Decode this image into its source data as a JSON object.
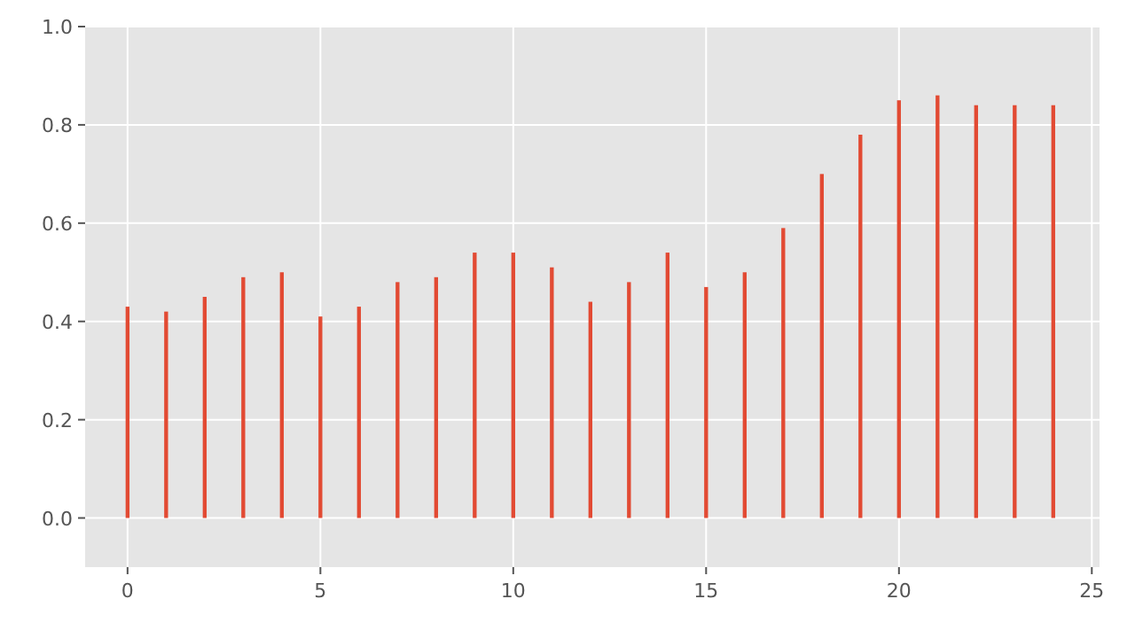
{
  "chart_data": {
    "type": "bar",
    "x": [
      0,
      1,
      2,
      3,
      4,
      5,
      6,
      7,
      8,
      9,
      10,
      11,
      12,
      13,
      14,
      15,
      16,
      17,
      18,
      19,
      20,
      21,
      22,
      23,
      24
    ],
    "values": [
      0.43,
      0.42,
      0.45,
      0.49,
      0.5,
      0.41,
      0.43,
      0.48,
      0.49,
      0.54,
      0.54,
      0.51,
      0.44,
      0.48,
      0.54,
      0.47,
      0.5,
      0.59,
      0.7,
      0.78,
      0.85,
      0.86,
      0.84,
      0.84,
      0.84
    ],
    "color": "#e24a33",
    "xlim": [
      -1.1,
      25.2
    ],
    "xticks": [
      0,
      5,
      10,
      15,
      20,
      25
    ],
    "ylim": [
      -0.1,
      1.0
    ],
    "yticks": [
      {
        "value": 0,
        "label": "0.0"
      },
      {
        "value": 0.2,
        "label": "0.2"
      },
      {
        "value": 0.4,
        "label": "0.4"
      },
      {
        "value": 0.6,
        "label": "0.6"
      },
      {
        "value": 0.8,
        "label": "0.8"
      },
      {
        "value": 1.0,
        "label": "1.0"
      }
    ],
    "grid": true
  }
}
